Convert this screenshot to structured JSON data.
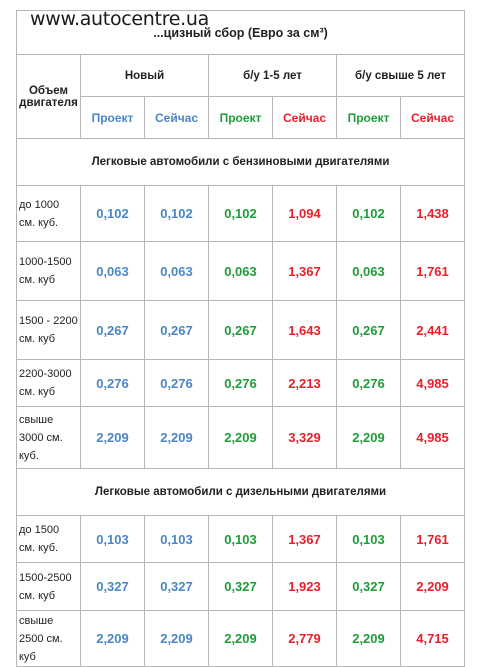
{
  "watermark": "www.autocentre.ua",
  "title": "...цизный сбор (Евро за см³)",
  "header": {
    "engine_volume": "Объем двигателя",
    "groups": [
      "Новый",
      "б/у 1-5 лет",
      "б/у свыше 5 лет"
    ],
    "subcols": [
      "Проект",
      "Сейчас",
      "Проект",
      "Сейчас",
      "Проект",
      "Сейчас"
    ]
  },
  "sections": [
    {
      "title": "Легковые автомобили с бензиновыми двигателями",
      "rows": [
        {
          "label": "до 1000 см. куб.",
          "values": [
            "0,102",
            "0,102",
            "0,102",
            "1,094",
            "0,102",
            "1,438"
          ]
        },
        {
          "label": "1000-1500 см. куб",
          "values": [
            "0,063",
            "0,063",
            "0,063",
            "1,367",
            "0,063",
            "1,761"
          ]
        },
        {
          "label": "1500 - 2200 см. куб",
          "values": [
            "0,267",
            "0,267",
            "0,267",
            "1,643",
            "0,267",
            "2,441"
          ]
        },
        {
          "label": "2200-3000 см. куб",
          "values": [
            "0,276",
            "0,276",
            "0,276",
            "2,213",
            "0,276",
            "4,985"
          ]
        },
        {
          "label": "свыше 3000 см. куб.",
          "values": [
            "2,209",
            "2,209",
            "2,209",
            "3,329",
            "2,209",
            "4,985"
          ]
        }
      ]
    },
    {
      "title": "Легковые автомобили с дизельными двигателями",
      "rows": [
        {
          "label": "до 1500 см. куб.",
          "values": [
            "0,103",
            "0,103",
            "0,103",
            "1,367",
            "0,103",
            "1,761"
          ]
        },
        {
          "label": "1500-2500 см. куб",
          "values": [
            "0,327",
            "0,327",
            "0,327",
            "1,923",
            "0,327",
            "2,209"
          ]
        },
        {
          "label": "свыше 2500 см. куб",
          "values": [
            "2,209",
            "2,209",
            "2,209",
            "2,779",
            "2,209",
            "4,715"
          ]
        }
      ]
    }
  ],
  "colors": {
    "blue": "#4a86c8",
    "green": "#1e9d3a",
    "red": "#e8202a"
  }
}
